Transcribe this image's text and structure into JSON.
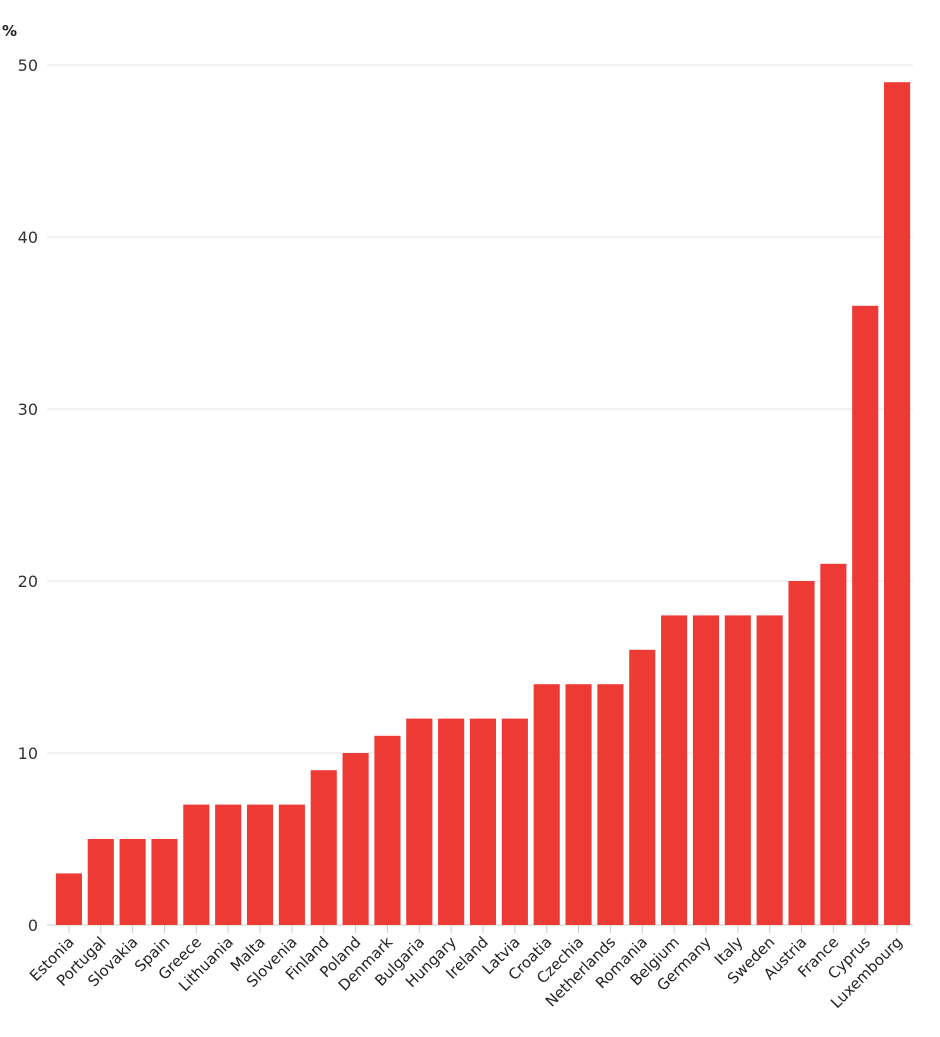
{
  "chart_data": {
    "type": "bar",
    "title": "",
    "ylabel": "%",
    "xlabel": "",
    "ylim": [
      0,
      50
    ],
    "yticks": [
      0,
      10,
      20,
      30,
      40,
      50
    ],
    "grid": true,
    "bar_color": "#EE3A35",
    "categories": [
      "Estonia",
      "Portugal",
      "Slovakia",
      "Spain",
      "Greece",
      "Lithuania",
      "Malta",
      "Slovenia",
      "Finland",
      "Poland",
      "Denmark",
      "Bulgaria",
      "Hungary",
      "Ireland",
      "Latvia",
      "Croatia",
      "Czechia",
      "Netherlands",
      "Romania",
      "Belgium",
      "Germany",
      "Italy",
      "Sweden",
      "Austria",
      "France",
      "Cyprus",
      "Luxembourg"
    ],
    "values": [
      3,
      5,
      5,
      5,
      7,
      7,
      7,
      7,
      9,
      10,
      11,
      12,
      12,
      12,
      12,
      14,
      14,
      14,
      16,
      18,
      18,
      18,
      18,
      20,
      21,
      36,
      49
    ]
  }
}
